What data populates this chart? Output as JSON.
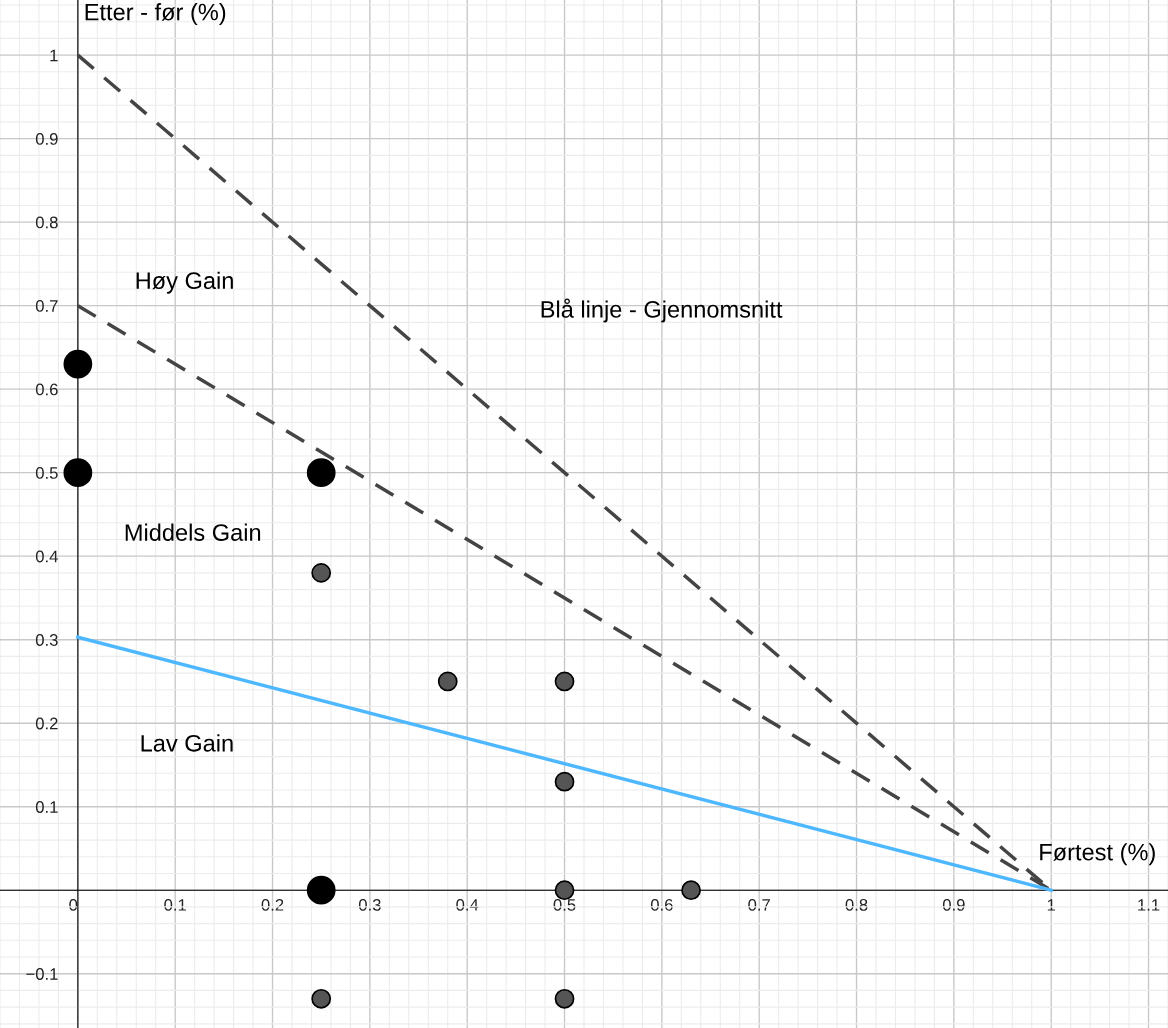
{
  "chart_data": {
    "type": "scatter",
    "xlabel": "Førtest (%)",
    "ylabel": "Etter - før (%)",
    "xlim": [
      -0.08,
      1.12
    ],
    "ylim": [
      -0.165,
      1.066
    ],
    "xticks": [
      0,
      0.1,
      0.2,
      0.3,
      0.4,
      0.5,
      0.6,
      0.7,
      0.8,
      0.9,
      1,
      1.1
    ],
    "yticks": [
      {
        "value": -0.1,
        "label": "−0.1"
      },
      {
        "value": 0,
        "label": null
      },
      0.1,
      0.2,
      0.3,
      0.4,
      0.5,
      0.6,
      0.7,
      0.8,
      0.9,
      1
    ],
    "grid": true,
    "series": [
      {
        "type": "line",
        "x": [
          0,
          1
        ],
        "values": [
          1,
          0
        ],
        "color": "#444444",
        "line_style": "dashed"
      },
      {
        "type": "line",
        "x": [
          0,
          1
        ],
        "values": [
          0.7,
          0
        ],
        "color": "#444444",
        "line_style": "dashed"
      },
      {
        "type": "line",
        "x": [
          0,
          1
        ],
        "values": [
          0.303,
          0
        ],
        "color": "#4db8ff",
        "line_style": "solid"
      },
      {
        "x": [
          0,
          0,
          0.25,
          0.25
        ],
        "values": [
          0.63,
          0.5,
          0.5,
          0
        ],
        "color": "#000000",
        "marker": "circle"
      },
      {
        "x": [
          0.25,
          0.38,
          0.5,
          0.5,
          0.5,
          0.63,
          0.25,
          0.5
        ],
        "values": [
          0.38,
          0.25,
          0.25,
          0.13,
          0,
          0,
          -0.13,
          -0.13
        ],
        "color": "#555555",
        "marker": "circle"
      }
    ],
    "annotations": [
      "Høy Gain",
      "Blå linje - Gjennomsnitt",
      "Middels Gain",
      "Lav Gain"
    ]
  }
}
